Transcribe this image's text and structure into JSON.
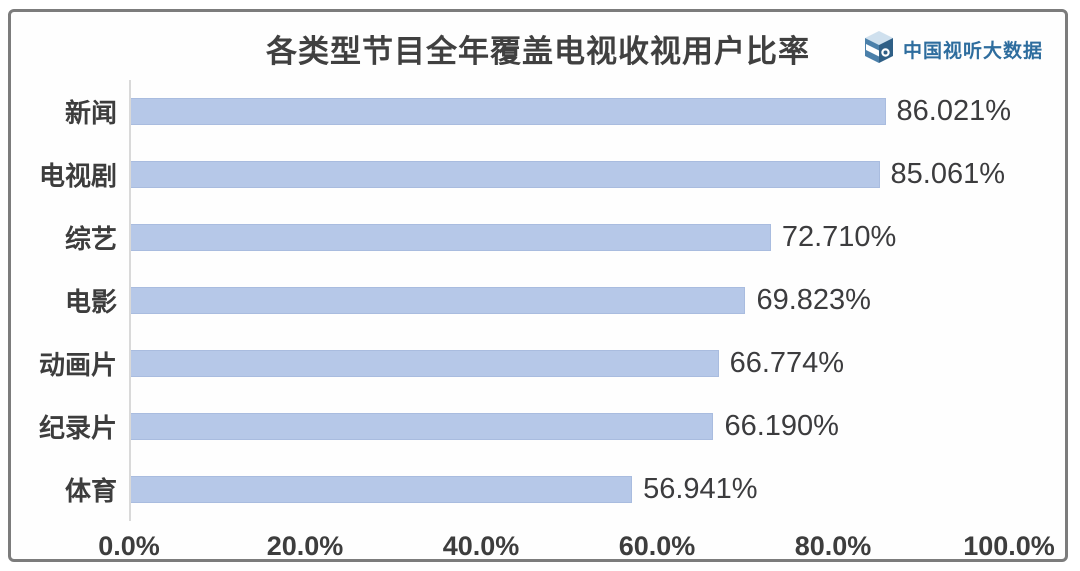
{
  "header": {
    "title": "各类型节目全年覆盖电视收视用户比率",
    "brand": "中国视听大数据"
  },
  "chart_data": {
    "type": "bar",
    "orientation": "horizontal",
    "title": "各类型节目全年覆盖电视收视用户比率",
    "categories": [
      "新闻",
      "电视剧",
      "综艺",
      "电影",
      "动画片",
      "纪录片",
      "体育"
    ],
    "values": [
      86.021,
      85.061,
      72.71,
      69.823,
      66.774,
      66.19,
      56.941
    ],
    "value_labels": [
      "86.021%",
      "85.061%",
      "72.710%",
      "69.823%",
      "66.774%",
      "66.190%",
      "56.941%"
    ],
    "xlabel": "",
    "ylabel": "",
    "xlim": [
      0,
      100
    ],
    "x_ticks": [
      "0.0%",
      "20.0%",
      "40.0%",
      "60.0%",
      "80.0%",
      "100.0%"
    ],
    "x_tick_values": [
      0,
      20,
      40,
      60,
      80,
      100
    ],
    "grid": false,
    "legend": false,
    "bar_color": "#b6c8e8",
    "bar_border_color": "#a9bcdf",
    "axis_line_color": "#d9d9d9",
    "text_color": "#3d3d3d"
  },
  "colors": {
    "brand_blue": "#2e6d9e",
    "card_border": "#7c7c7c",
    "background": "#fefefe"
  }
}
